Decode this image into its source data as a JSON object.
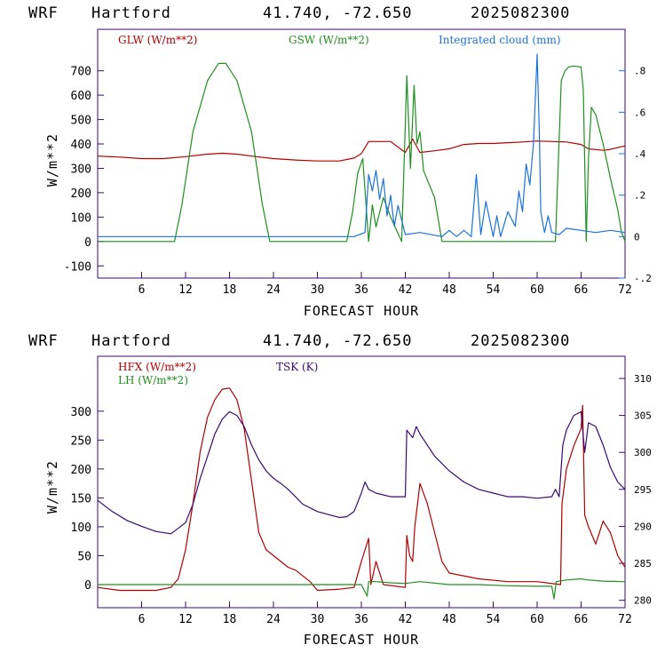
{
  "colors": {
    "red": "#b00000",
    "green": "#1f8f1f",
    "blue": "#1a73d9",
    "purple": "#3a0a6e"
  },
  "charts_meta": [
    {
      "header": {
        "model": "WRF",
        "station": "Hartford",
        "coords": "41.740, -72.650",
        "date": "2025082300"
      }
    },
    {
      "header": {
        "model": "WRF",
        "station": "Hartford",
        "coords": "41.740, -72.650",
        "date": "2025082300"
      }
    }
  ],
  "chart_data": [
    {
      "type": "line",
      "xlabel": "FORECAST HOUR",
      "ylabel": "W/m**2",
      "xlim": [
        0,
        72
      ],
      "xticks": [
        6,
        12,
        18,
        24,
        30,
        36,
        42,
        48,
        54,
        60,
        66,
        72
      ],
      "ylim": [
        -150,
        870
      ],
      "yticks": [
        -100,
        0,
        100,
        200,
        300,
        400,
        500,
        600,
        700
      ],
      "y2lim": [
        -0.2,
        1.0
      ],
      "y2ticks": [
        {
          "v": 0.8,
          "label": ".8"
        },
        {
          "v": 0.6,
          "label": ".6"
        },
        {
          "v": 0.4,
          "label": ".4"
        },
        {
          "v": 0.2,
          "label": ".2"
        },
        {
          "v": 0.0,
          "label": "0"
        },
        {
          "v": -0.2,
          "label": "-.2"
        }
      ],
      "series": [
        {
          "name": "GLW (W/m**2)",
          "color": "#b00000",
          "axis": "left",
          "x": [
            0,
            3,
            6,
            9,
            12,
            15,
            17,
            19,
            21,
            24,
            27,
            30,
            33,
            35,
            36,
            37,
            38,
            40,
            42,
            43,
            44,
            46,
            48,
            50,
            52,
            54,
            56,
            58,
            60,
            62,
            64,
            66,
            67,
            69,
            70,
            72
          ],
          "y": [
            350,
            346,
            340,
            340,
            348,
            358,
            362,
            358,
            350,
            340,
            334,
            330,
            330,
            342,
            360,
            410,
            410,
            410,
            365,
            420,
            365,
            372,
            380,
            398,
            402,
            402,
            405,
            408,
            412,
            410,
            408,
            398,
            380,
            374,
            378,
            392
          ]
        },
        {
          "name": "GSW (W/m**2)",
          "color": "#1f8f1f",
          "axis": "left",
          "x": [
            0,
            10.5,
            11.5,
            13,
            15,
            16.5,
            17.5,
            19,
            21,
            22.5,
            23.5,
            34,
            34.8,
            35.5,
            36.2,
            37,
            37.5,
            38,
            39,
            40,
            41.5,
            42.2,
            42.7,
            43.2,
            43.6,
            44,
            44.5,
            46,
            47,
            62.5,
            63.3,
            63.8,
            64.3,
            65,
            66,
            66.3,
            66.7,
            67,
            67.4,
            68,
            69,
            70,
            71,
            71.5,
            72
          ],
          "y": [
            0,
            0,
            150,
            450,
            660,
            730,
            730,
            660,
            450,
            150,
            0,
            0,
            120,
            280,
            340,
            0,
            150,
            60,
            180,
            100,
            0,
            680,
            300,
            640,
            400,
            450,
            290,
            180,
            0,
            0,
            660,
            700,
            715,
            720,
            715,
            620,
            0,
            340,
            550,
            520,
            400,
            260,
            130,
            40,
            0
          ]
        },
        {
          "name": "Integrated cloud (mm)",
          "color": "#1a73d9",
          "axis": "right",
          "x": [
            0,
            35,
            36.5,
            37,
            37.5,
            38,
            38.5,
            39,
            39.5,
            40,
            40.5,
            41,
            41.5,
            42,
            44,
            47,
            48,
            49,
            50,
            51,
            51.7,
            52.3,
            53,
            54,
            54.5,
            55,
            56,
            57,
            57.5,
            58,
            58.5,
            59,
            59.5,
            60,
            60.3,
            60.5,
            61,
            61.5,
            62,
            63,
            64,
            66,
            68,
            70,
            72
          ],
          "y": [
            0,
            0,
            0.02,
            0.3,
            0.22,
            0.32,
            0.18,
            0.28,
            0.1,
            0.2,
            0.05,
            0.15,
            0.08,
            0.01,
            0.02,
            0.0,
            0.03,
            0.0,
            0.03,
            0.0,
            0.3,
            0.01,
            0.17,
            0.0,
            0.1,
            0.0,
            0.12,
            0.05,
            0.22,
            0.12,
            0.35,
            0.25,
            0.45,
            0.88,
            0.5,
            0.12,
            0.02,
            0.1,
            0.02,
            0.01,
            0.04,
            0.03,
            0.02,
            0.03,
            0.02
          ]
        }
      ]
    },
    {
      "type": "line",
      "xlabel": "FORECAST HOUR",
      "ylabel": "W/m**2",
      "xlim": [
        0,
        72
      ],
      "xticks": [
        6,
        12,
        18,
        24,
        30,
        36,
        42,
        48,
        54,
        60,
        66,
        72
      ],
      "ylim": [
        -40,
        395
      ],
      "yticks": [
        0,
        50,
        100,
        150,
        200,
        250,
        300
      ],
      "y2lim": [
        279,
        313
      ],
      "y2ticks": [
        {
          "v": 310,
          "label": "310"
        },
        {
          "v": 305,
          "label": "305"
        },
        {
          "v": 300,
          "label": "300"
        },
        {
          "v": 295,
          "label": "295"
        },
        {
          "v": 290,
          "label": "290"
        },
        {
          "v": 285,
          "label": "285"
        },
        {
          "v": 280,
          "label": "280"
        }
      ],
      "series": [
        {
          "name": "HFX (W/m**2)",
          "color": "#b00000",
          "axis": "left",
          "x": [
            0,
            3,
            6,
            8,
            10,
            11,
            12,
            13,
            14,
            15,
            16,
            17,
            18,
            19,
            20,
            21,
            22,
            23,
            24,
            25,
            26,
            27,
            28,
            29,
            30,
            33,
            35,
            36,
            37,
            37.3,
            38,
            39,
            42,
            42.2,
            42.6,
            43,
            43.3,
            44,
            45,
            46,
            47,
            48,
            52,
            56,
            60,
            63.2,
            63.4,
            64,
            65,
            66,
            66.2,
            66.5,
            67,
            68,
            69,
            70,
            71,
            72
          ],
          "y": [
            -5,
            -10,
            -10,
            -10,
            -5,
            10,
            60,
            140,
            230,
            290,
            320,
            338,
            340,
            320,
            270,
            180,
            90,
            60,
            50,
            40,
            30,
            25,
            15,
            5,
            -10,
            -8,
            -5,
            40,
            80,
            0,
            40,
            0,
            -5,
            85,
            50,
            40,
            100,
            175,
            140,
            90,
            40,
            20,
            10,
            5,
            5,
            0,
            140,
            200,
            240,
            270,
            310,
            120,
            100,
            70,
            110,
            90,
            50,
            30
          ]
        },
        {
          "name": "LH (W/m**2)",
          "color": "#1f8f1f",
          "axis": "left",
          "x": [
            0,
            10,
            20,
            30,
            36,
            36.8,
            37,
            38,
            40,
            42,
            44,
            48,
            52,
            56,
            60,
            62,
            62.3,
            62.6,
            64,
            66,
            67,
            69,
            72
          ],
          "y": [
            0,
            0,
            0,
            0,
            0,
            -20,
            5,
            5,
            3,
            2,
            5,
            0,
            0,
            -2,
            -3,
            -3,
            -25,
            5,
            8,
            10,
            8,
            6,
            5
          ]
        },
        {
          "name": "TSK (K)",
          "color": "#3a0a6e",
          "axis": "right",
          "x": [
            0,
            2,
            4,
            6,
            8,
            10,
            12,
            13,
            14,
            15,
            16,
            17,
            18,
            19,
            20,
            21,
            22,
            23,
            24,
            25,
            26,
            27,
            28,
            30,
            33,
            34,
            35,
            36,
            36.5,
            37,
            38,
            40,
            42,
            42.2,
            43,
            43.5,
            44,
            46,
            48,
            50,
            52,
            54,
            56,
            58,
            60,
            62,
            62.5,
            63,
            63.5,
            64,
            65,
            66,
            66.5,
            67,
            68,
            69,
            70,
            71,
            72
          ],
          "y": [
            293.5,
            292,
            290.8,
            290,
            289.3,
            289,
            290.5,
            293,
            296.5,
            299.5,
            302.5,
            304.5,
            305.5,
            305,
            303.5,
            301,
            299,
            297.5,
            296.5,
            295.8,
            295,
            294,
            293,
            292,
            291.2,
            291.3,
            292,
            294.5,
            296,
            295,
            294.5,
            294,
            294,
            303,
            302,
            303.5,
            302.5,
            299.5,
            297.5,
            296,
            295,
            294.5,
            294,
            294,
            293.8,
            294,
            295,
            294,
            301,
            303,
            305,
            305.5,
            300,
            304,
            303.5,
            301,
            298,
            296,
            295
          ]
        }
      ]
    }
  ]
}
